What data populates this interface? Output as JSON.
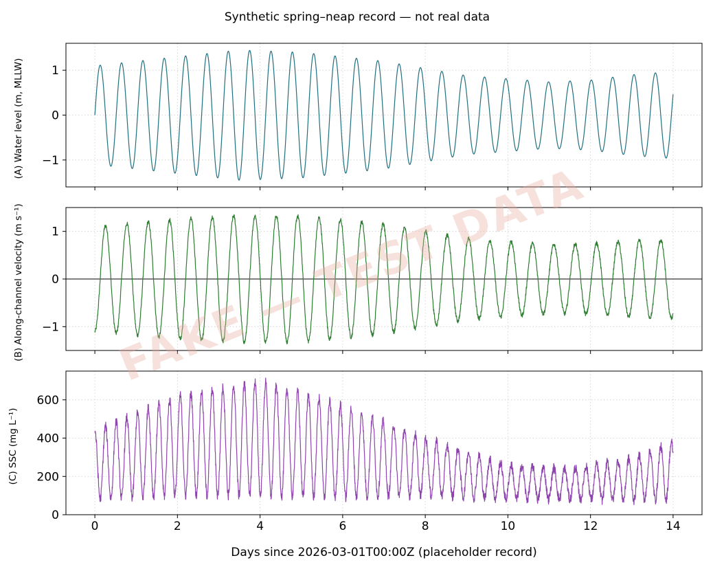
{
  "figure": {
    "suptitle": "Synthetic spring–neap record — not real data",
    "watermark": "FAKE — TEST DATA",
    "xlabel": "Days since 2026-03-01T00:00Z (placeholder record)"
  },
  "chart_data": [
    {
      "type": "line",
      "panel": "A",
      "ylabel": "(A) Water level (m, MLLW)",
      "color": "#1f6f7f",
      "xlim": [
        -0.7,
        14.7
      ],
      "ylim": [
        -1.6,
        1.6
      ],
      "xticks": [
        0,
        2,
        4,
        6,
        8,
        10,
        12,
        14
      ],
      "yticks": [
        -1,
        0,
        1
      ],
      "ytick_labels": [
        "−1",
        "0",
        "1"
      ],
      "grid": "dotted",
      "series": [
        {
          "model": "tidal sinusoid, period 0.517 d, starting at 0 m and rising",
          "x_range": [
            0,
            14
          ],
          "amplitude_envelope": {
            "x": [
              0,
              2,
              3.5,
              5,
              7,
              9,
              11,
              12,
              13,
              14
            ],
            "y": [
              1.1,
              1.3,
              1.45,
              1.4,
              1.2,
              0.88,
              0.74,
              0.78,
              0.9,
              0.97
            ]
          }
        }
      ]
    },
    {
      "type": "line",
      "panel": "B",
      "ylabel": "(B) Along-channel velocity (m s⁻¹)",
      "color": "#2e7d32",
      "xlim": [
        -0.7,
        14.7
      ],
      "ylim": [
        -1.5,
        1.5
      ],
      "xticks": [
        0,
        2,
        4,
        6,
        8,
        10,
        12,
        14
      ],
      "yticks": [
        -1,
        0,
        1
      ],
      "ytick_labels": [
        "−1",
        "0",
        "1"
      ],
      "grid": "dotted",
      "zero_line": true,
      "series": [
        {
          "model": "noisy tidal sinusoid, period 0.517 d, starting at −1 m s⁻¹",
          "x_range": [
            0,
            14
          ],
          "amplitude_envelope": {
            "x": [
              0,
              2,
              3.5,
              5,
              7,
              9,
              11,
              12,
              13,
              14
            ],
            "y": [
              1.1,
              1.25,
              1.33,
              1.32,
              1.15,
              0.85,
              0.72,
              0.74,
              0.8,
              0.82
            ]
          }
        }
      ]
    },
    {
      "type": "line",
      "panel": "C",
      "ylabel": "(C) SSC (mg L⁻¹)",
      "color": "#8e44ad",
      "xlim": [
        -0.7,
        14.7
      ],
      "ylim": [
        0,
        750
      ],
      "xticks": [
        0,
        2,
        4,
        6,
        8,
        10,
        12,
        14
      ],
      "xtick_labels": [
        "0",
        "2",
        "4",
        "6",
        "8",
        "10",
        "12",
        "14"
      ],
      "yticks": [
        0,
        200,
        400,
        600
      ],
      "grid": "dotted",
      "series": [
        {
          "model": "noisy quarter-diurnal oscillation, period 0.258 d",
          "x_range": [
            0,
            14
          ],
          "mean_envelope": {
            "x": [
              0,
              2,
              4,
              6,
              8,
              10,
              11.5,
              13,
              14
            ],
            "y": [
              260,
              360,
              400,
              330,
              250,
              170,
              160,
              185,
              230
            ]
          },
          "amplitude_envelope": {
            "x": [
              0,
              2,
              4,
              6,
              8,
              10,
              11.5,
              13,
              14
            ],
            "y": [
              180,
              260,
              300,
              240,
              150,
              90,
              80,
              110,
              150
            ]
          }
        }
      ]
    }
  ]
}
